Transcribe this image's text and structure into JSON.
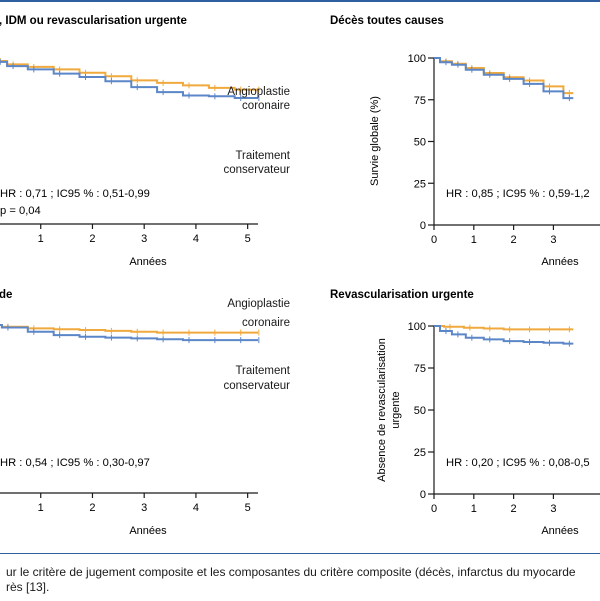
{
  "colors": {
    "angioplastie": "#f0a93c",
    "conservateur": "#5b86c8",
    "axis": "#1a1a1a",
    "rule": "#2f5f9f"
  },
  "caption": {
    "line1": "ur le critère de jugement composite et les composantes du critère composite (décès, infarctus du myocarde",
    "line2": "rès [13]."
  },
  "chart_data": [
    {
      "type": "line",
      "title": ", IDM ou revascularisation urgente",
      "xlabel": "Années",
      "ylabel": "",
      "xlim": [
        0,
        5.2
      ],
      "ylim": [
        0,
        100
      ],
      "xticks": [
        "1",
        "2",
        "3",
        "4",
        "5"
      ],
      "yticks": [],
      "stats": [
        "HR : 0,71 ; IC95 % : 0,51-0,99",
        "p = 0,04"
      ],
      "series_labels": [
        [
          "Angioplastie",
          "coronaire"
        ],
        [
          "Traitement",
          "conservateur"
        ]
      ],
      "series": [
        {
          "color": "#f0a93c",
          "x": [
            0,
            0.2,
            0.5,
            1,
            1.5,
            2,
            2.5,
            3,
            3.5,
            4,
            4.5,
            5,
            5.2
          ],
          "y": [
            100,
            97,
            95,
            93.5,
            92,
            90,
            88,
            85.5,
            84,
            82.5,
            81,
            80,
            80
          ]
        },
        {
          "color": "#5b86c8",
          "x": [
            0,
            0.2,
            0.5,
            1,
            1.5,
            2,
            2.5,
            3,
            3.5,
            4,
            4.5,
            5,
            5.2
          ],
          "y": [
            100,
            96.5,
            94,
            92,
            89.5,
            87.5,
            85,
            81.5,
            78.5,
            76.5,
            76,
            75,
            75
          ]
        }
      ]
    },
    {
      "type": "line",
      "title": "Décès toutes causes",
      "xlabel": "Années",
      "ylabel": "Survie globale (%)",
      "xlim": [
        0,
        5.2
      ],
      "ylim": [
        0,
        100
      ],
      "xticks": [
        "0",
        "1",
        "2",
        "3"
      ],
      "yticks": [
        "0",
        "25",
        "50",
        "75",
        "100"
      ],
      "stats": [
        "HR : 0,85 ; IC95 % : 0,59-1,2"
      ],
      "series_labels": [],
      "series": [
        {
          "color": "#f0a93c",
          "x": [
            0,
            0.3,
            0.6,
            1,
            1.5,
            2,
            2.5,
            3,
            3.5
          ],
          "y": [
            100,
            98,
            96.5,
            94,
            91,
            88.5,
            86.5,
            83,
            79
          ]
        },
        {
          "color": "#5b86c8",
          "x": [
            0,
            0.3,
            0.6,
            1,
            1.5,
            2,
            2.5,
            3,
            3.5
          ],
          "y": [
            100,
            97.5,
            96,
            93,
            90,
            87.5,
            84.5,
            80,
            76
          ]
        }
      ]
    },
    {
      "type": "line",
      "title": "de",
      "xlabel": "Années",
      "ylabel": "",
      "xlim": [
        0,
        5.2
      ],
      "ylim": [
        0,
        100
      ],
      "xticks": [
        "1",
        "2",
        "3",
        "4",
        "5"
      ],
      "yticks": [],
      "stats": [
        "HR : 0,54 ; IC95 % : 0,30-0,97"
      ],
      "series_labels": [
        [
          "Angioplastie",
          "coronaire"
        ],
        [
          "Traitement",
          "conservateur"
        ]
      ],
      "series": [
        {
          "color": "#f0a93c",
          "x": [
            0,
            0.5,
            1,
            1.5,
            2,
            2.5,
            3,
            3.5,
            4,
            4.5,
            5,
            5.2
          ],
          "y": [
            100,
            99,
            98,
            97.5,
            97,
            96.5,
            96,
            95.5,
            95.5,
            95.5,
            95.5,
            95.5
          ]
        },
        {
          "color": "#5b86c8",
          "x": [
            0,
            0.5,
            1,
            1.5,
            2,
            2.5,
            3,
            3.5,
            4,
            4.5,
            5,
            5.2
          ],
          "y": [
            100,
            98.5,
            96,
            94,
            93,
            92.5,
            92,
            91.5,
            91,
            91,
            91,
            91
          ]
        }
      ]
    },
    {
      "type": "line",
      "title": "Revascularisation urgente",
      "xlabel": "Années",
      "ylabel": "Absence de revascularisation urgente",
      "xlim": [
        0,
        5.2
      ],
      "ylim": [
        0,
        100
      ],
      "xticks": [
        "0",
        "1",
        "2",
        "3"
      ],
      "yticks": [
        "0",
        "25",
        "50",
        "75",
        "100"
      ],
      "stats": [
        "HR : 0,20 ; IC95 % : 0,08-0,5"
      ],
      "series_labels": [],
      "series": [
        {
          "color": "#f0a93c",
          "x": [
            0,
            0.5,
            1,
            1.5,
            2,
            2.5,
            3,
            3.5
          ],
          "y": [
            100,
            99.5,
            99,
            98.5,
            98,
            98,
            98,
            98
          ]
        },
        {
          "color": "#5b86c8",
          "x": [
            0,
            0.3,
            0.6,
            1,
            1.5,
            2,
            2.5,
            3,
            3.5
          ],
          "y": [
            100,
            97,
            95,
            93,
            92,
            91,
            90.5,
            90,
            89.5
          ]
        }
      ]
    }
  ]
}
